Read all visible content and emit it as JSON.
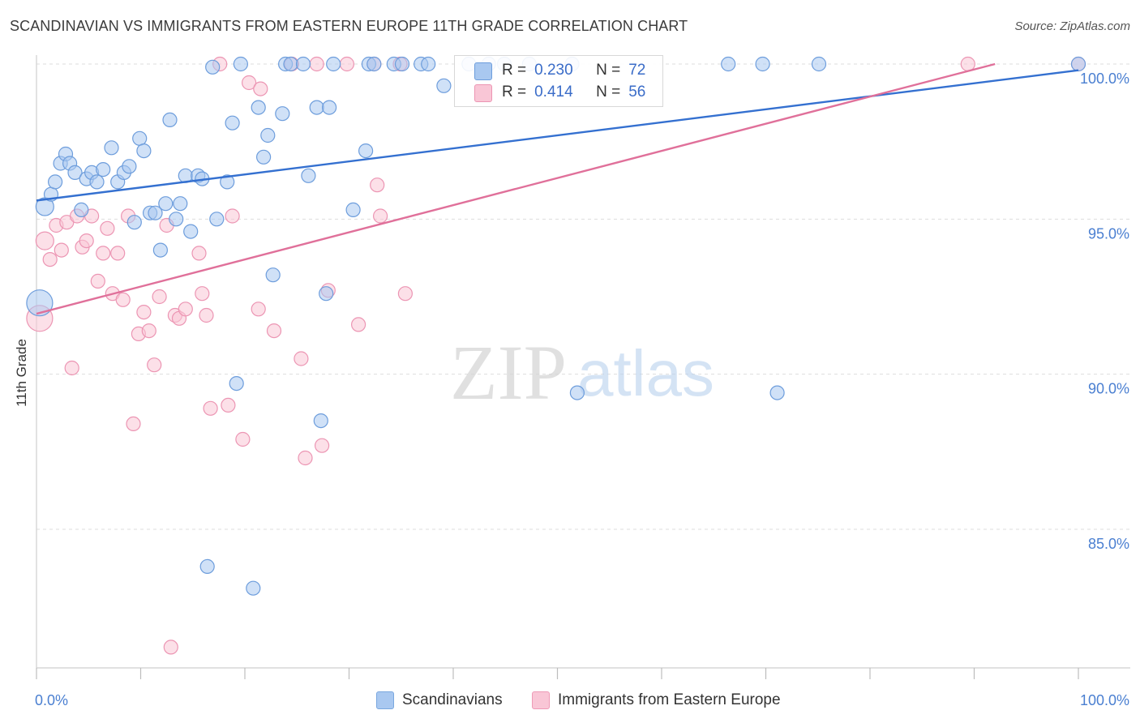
{
  "header": {
    "title": "SCANDINAVIAN VS IMMIGRANTS FROM EASTERN EUROPE 11TH GRADE CORRELATION CHART",
    "source": "Source: ZipAtlas.com"
  },
  "watermark": {
    "zip": "ZIP",
    "atlas": "atlas"
  },
  "legend": {
    "r_label": "R =",
    "n_label": "N =",
    "rows": [
      {
        "r": "0.230",
        "n": "72",
        "color": "#9cc0ee"
      },
      {
        "r": "0.414",
        "n": "56",
        "color": "#f7b6cc"
      }
    ]
  },
  "bottom_legend": {
    "items": [
      {
        "label": "Scandinavians",
        "color": "#a9c8f0",
        "border": "#7aa7df"
      },
      {
        "label": "Immigrants from Eastern Europe",
        "color": "#f9c6d6",
        "border": "#ee9ab6"
      }
    ]
  },
  "colors": {
    "blue_fill": "#a9c8f0",
    "blue_stroke": "#6d9ddc",
    "blue_line": "#3470d0",
    "pink_fill": "#f9c6d6",
    "pink_stroke": "#ec95b3",
    "pink_line": "#e0709a",
    "grid": "#dddddd",
    "tick_text": "#4a7fd1"
  },
  "chart_data": {
    "type": "scatter",
    "title": "SCANDINAVIAN VS IMMIGRANTS FROM EASTERN EUROPE 11TH GRADE CORRELATION CHART",
    "xlabel": "",
    "ylabel": "11th Grade",
    "xlim": [
      0,
      100
    ],
    "ylim": [
      80.0,
      100.8
    ],
    "x_tick_labels": [
      "0.0%",
      "100.0%"
    ],
    "y_ticks": [
      85,
      90,
      95,
      100
    ],
    "y_tick_labels": [
      "85.0%",
      "90.0%",
      "95.0%",
      "100.0%"
    ],
    "grid": true,
    "legend_position": "top-center",
    "series": [
      {
        "name": "Scandinavians",
        "r": 0.23,
        "n": 72,
        "trend": {
          "x": [
            0,
            100
          ],
          "y": [
            95.6,
            99.8
          ]
        },
        "points": [
          [
            0.3,
            92.3,
            "big"
          ],
          [
            0.8,
            95.4,
            "med"
          ],
          [
            1.4,
            95.8
          ],
          [
            1.8,
            96.2
          ],
          [
            2.3,
            96.8
          ],
          [
            2.8,
            97.1
          ],
          [
            3.2,
            96.8
          ],
          [
            3.7,
            96.5
          ],
          [
            4.3,
            95.3
          ],
          [
            4.8,
            96.3
          ],
          [
            5.3,
            96.5
          ],
          [
            5.8,
            96.2
          ],
          [
            6.4,
            96.6
          ],
          [
            7.2,
            97.3
          ],
          [
            7.8,
            96.2
          ],
          [
            8.4,
            96.5
          ],
          [
            8.9,
            96.7
          ],
          [
            9.4,
            94.9
          ],
          [
            9.9,
            97.6
          ],
          [
            10.3,
            97.2
          ],
          [
            10.9,
            95.2
          ],
          [
            11.4,
            95.2
          ],
          [
            11.9,
            94.0
          ],
          [
            12.4,
            95.5
          ],
          [
            12.8,
            98.2
          ],
          [
            13.4,
            95.0
          ],
          [
            13.8,
            95.5
          ],
          [
            14.3,
            96.4
          ],
          [
            14.8,
            94.6
          ],
          [
            15.5,
            96.4
          ],
          [
            15.9,
            96.3
          ],
          [
            16.4,
            83.8
          ],
          [
            16.9,
            99.9
          ],
          [
            17.3,
            95.0
          ],
          [
            18.3,
            96.2
          ],
          [
            18.8,
            98.1
          ],
          [
            19.2,
            89.7
          ],
          [
            19.6,
            100.0
          ],
          [
            20.8,
            83.1
          ],
          [
            21.3,
            98.6
          ],
          [
            21.8,
            97.0
          ],
          [
            22.2,
            97.7
          ],
          [
            22.7,
            93.2
          ],
          [
            23.6,
            98.4
          ],
          [
            23.9,
            100.0
          ],
          [
            24.4,
            100.0
          ],
          [
            25.6,
            100.0
          ],
          [
            26.1,
            96.4
          ],
          [
            26.9,
            98.6
          ],
          [
            27.3,
            88.5
          ],
          [
            27.8,
            92.6
          ],
          [
            28.1,
            98.6
          ],
          [
            28.5,
            100.0
          ],
          [
            30.4,
            95.3
          ],
          [
            31.6,
            97.2
          ],
          [
            31.9,
            100.0
          ],
          [
            32.4,
            100.0
          ],
          [
            34.3,
            100.0
          ],
          [
            35.1,
            100.0
          ],
          [
            36.9,
            100.0
          ],
          [
            37.6,
            100.0
          ],
          [
            39.1,
            99.3
          ],
          [
            41.5,
            100.0
          ],
          [
            43.4,
            100.0
          ],
          [
            44.9,
            100.0
          ],
          [
            47.3,
            100.0
          ],
          [
            51.4,
            100.0
          ],
          [
            51.9,
            89.4
          ],
          [
            66.4,
            100.0
          ],
          [
            69.7,
            100.0
          ],
          [
            71.1,
            89.4
          ],
          [
            75.1,
            100.0
          ],
          [
            100.0,
            100.0
          ]
        ]
      },
      {
        "name": "Immigrants from Eastern Europe",
        "r": 0.414,
        "n": 56,
        "trend": {
          "x": [
            0,
            92
          ],
          "y": [
            91.95,
            100.0
          ]
        },
        "points": [
          [
            0.3,
            91.8,
            "big"
          ],
          [
            0.8,
            94.3,
            "med"
          ],
          [
            1.3,
            93.7
          ],
          [
            1.9,
            94.8
          ],
          [
            2.4,
            94.0
          ],
          [
            2.9,
            94.9
          ],
          [
            3.4,
            90.2
          ],
          [
            3.9,
            95.1
          ],
          [
            4.4,
            94.1
          ],
          [
            4.8,
            94.3
          ],
          [
            5.3,
            95.1
          ],
          [
            5.9,
            93.0
          ],
          [
            6.4,
            93.9
          ],
          [
            6.8,
            94.7
          ],
          [
            7.3,
            92.6
          ],
          [
            7.8,
            93.9
          ],
          [
            8.3,
            92.4
          ],
          [
            8.8,
            95.1
          ],
          [
            9.3,
            88.4
          ],
          [
            9.8,
            91.3
          ],
          [
            10.3,
            92.0
          ],
          [
            10.8,
            91.4
          ],
          [
            11.3,
            90.3
          ],
          [
            11.8,
            92.5
          ],
          [
            12.5,
            94.8
          ],
          [
            12.9,
            81.2
          ],
          [
            13.3,
            91.9
          ],
          [
            13.7,
            91.8
          ],
          [
            14.3,
            92.1
          ],
          [
            15.6,
            93.9
          ],
          [
            15.9,
            92.6
          ],
          [
            16.3,
            91.9
          ],
          [
            16.7,
            88.9
          ],
          [
            17.6,
            100.0
          ],
          [
            18.4,
            89.0
          ],
          [
            18.8,
            95.1
          ],
          [
            19.8,
            87.9
          ],
          [
            20.4,
            99.4
          ],
          [
            21.3,
            92.1
          ],
          [
            21.5,
            99.2
          ],
          [
            22.8,
            91.4
          ],
          [
            24.5,
            100.0
          ],
          [
            25.4,
            90.5
          ],
          [
            25.8,
            87.3
          ],
          [
            26.9,
            100.0
          ],
          [
            27.4,
            87.7
          ],
          [
            28.0,
            92.7
          ],
          [
            29.8,
            100.0
          ],
          [
            30.9,
            91.6
          ],
          [
            32.4,
            100.0
          ],
          [
            32.7,
            96.1
          ],
          [
            33.0,
            95.1
          ],
          [
            34.9,
            100.0
          ],
          [
            35.4,
            92.6
          ],
          [
            89.4,
            100.0
          ],
          [
            100.0,
            100.0
          ]
        ]
      }
    ]
  }
}
